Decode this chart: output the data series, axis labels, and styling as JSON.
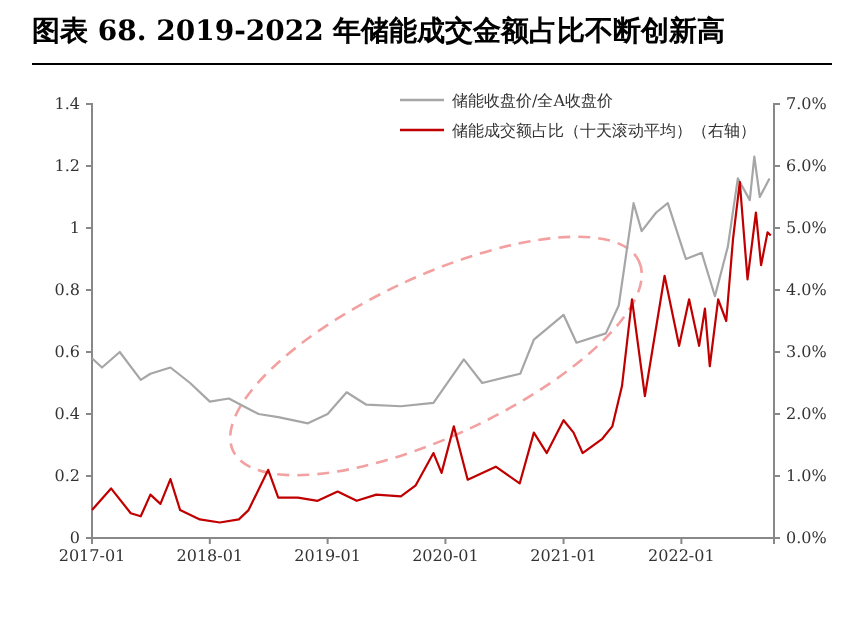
{
  "chart_data": {
    "type": "line",
    "title": "图表 68. 2019-2022 年储能成交金额占比不断创新高",
    "xlim": [
      "2017-01-01",
      "2022-10-15"
    ],
    "xticks": [
      "2017-01",
      "2018-01",
      "2019-01",
      "2020-01",
      "2021-01",
      "2022-01"
    ],
    "ylim": [
      0,
      1.4
    ],
    "yticks": [
      0,
      0.2,
      0.4,
      0.6,
      0.8,
      1,
      1.2,
      1.4
    ],
    "y2lim": [
      0,
      7
    ],
    "y2ticks": [
      {
        "value": 0,
        "label": "0.0%"
      },
      {
        "value": 1,
        "label": "1.0%"
      },
      {
        "value": 2,
        "label": "2.0%"
      },
      {
        "value": 3,
        "label": "3.0%"
      },
      {
        "value": 4,
        "label": "4.0%"
      },
      {
        "value": 5,
        "label": "5.0%"
      },
      {
        "value": 6,
        "label": "6.0%"
      },
      {
        "value": 7,
        "label": "7.0%"
      }
    ],
    "grid": false,
    "legend": "top right",
    "series": [
      {
        "name": "储能收盘价/全A收盘价",
        "color": "#a6a6a6",
        "x": [
          "2017-01-01",
          "2017-02-01",
          "2017-03-28",
          "2017-06-01",
          "2017-07-01",
          "2017-09-01",
          "2017-11-01",
          "2018-01-01",
          "2018-03-01",
          "2018-06-01",
          "2018-08-01",
          "2018-11-01",
          "2019-01-01",
          "2019-03-01",
          "2019-05-01",
          "2019-08-16",
          "2019-11-25",
          "2020-02-27",
          "2020-04-24",
          "2020-08-20",
          "2020-10-01",
          "2021-01-01",
          "2021-02-10",
          "2021-05-12",
          "2021-06-21",
          "2021-08-06",
          "2021-08-31",
          "2021-10-15",
          "2021-11-20",
          "2022-01-15",
          "2022-03-05",
          "2022-04-15",
          "2022-05-25",
          "2022-06-25",
          "2022-08-01",
          "2022-08-15",
          "2022-09-01",
          "2022-10-01"
        ],
        "values": [
          0.58,
          0.55,
          0.6,
          0.51,
          0.53,
          0.55,
          0.5,
          0.44,
          0.45,
          0.4,
          0.39,
          0.37,
          0.4,
          0.47,
          0.43,
          0.425,
          0.436,
          0.576,
          0.5,
          0.53,
          0.64,
          0.72,
          0.63,
          0.66,
          0.75,
          1.08,
          0.99,
          1.05,
          1.08,
          0.9,
          0.92,
          0.78,
          0.94,
          1.16,
          1.09,
          1.23,
          1.1,
          1.16
        ]
      },
      {
        "name": "储能成交额占比（十天滚动平均）（右轴）",
        "color": "#c00000",
        "axis": "y2",
        "x": [
          "2017-01-01",
          "2017-03-01",
          "2017-05-01",
          "2017-06-01",
          "2017-07-01",
          "2017-08-01",
          "2017-09-01",
          "2017-10-01",
          "2017-12-01",
          "2018-02-01",
          "2018-04-01",
          "2018-05-01",
          "2018-07-01",
          "2018-08-01",
          "2018-10-01",
          "2018-12-01",
          "2019-02-01",
          "2019-04-01",
          "2019-06-01",
          "2019-08-16",
          "2019-10-01",
          "2019-11-25",
          "2019-12-20",
          "2020-01-27",
          "2020-03-10",
          "2020-06-05",
          "2020-08-18",
          "2020-10-01",
          "2020-11-10",
          "2021-01-01",
          "2021-02-01",
          "2021-03-01",
          "2021-05-01",
          "2021-06-01",
          "2021-07-01",
          "2021-08-01",
          "2021-09-10",
          "2021-11-10",
          "2021-12-25",
          "2022-01-25",
          "2022-02-25",
          "2022-03-15",
          "2022-03-30",
          "2022-04-25",
          "2022-05-20",
          "2022-06-10",
          "2022-07-01",
          "2022-07-25",
          "2022-08-20",
          "2022-09-05",
          "2022-09-25",
          "2022-10-05"
        ],
        "values": [
          0.45,
          0.8,
          0.4,
          0.35,
          0.7,
          0.55,
          0.95,
          0.45,
          0.3,
          0.25,
          0.3,
          0.45,
          1.1,
          0.65,
          0.65,
          0.6,
          0.75,
          0.6,
          0.7,
          0.67,
          0.85,
          1.37,
          1.05,
          1.8,
          0.94,
          1.15,
          0.88,
          1.7,
          1.37,
          1.9,
          1.7,
          1.37,
          1.6,
          1.8,
          2.45,
          3.85,
          2.29,
          4.23,
          3.1,
          3.85,
          3.1,
          3.7,
          2.77,
          3.85,
          3.5,
          4.82,
          5.74,
          4.17,
          5.25,
          4.4,
          4.93,
          4.88
        ]
      }
    ]
  }
}
